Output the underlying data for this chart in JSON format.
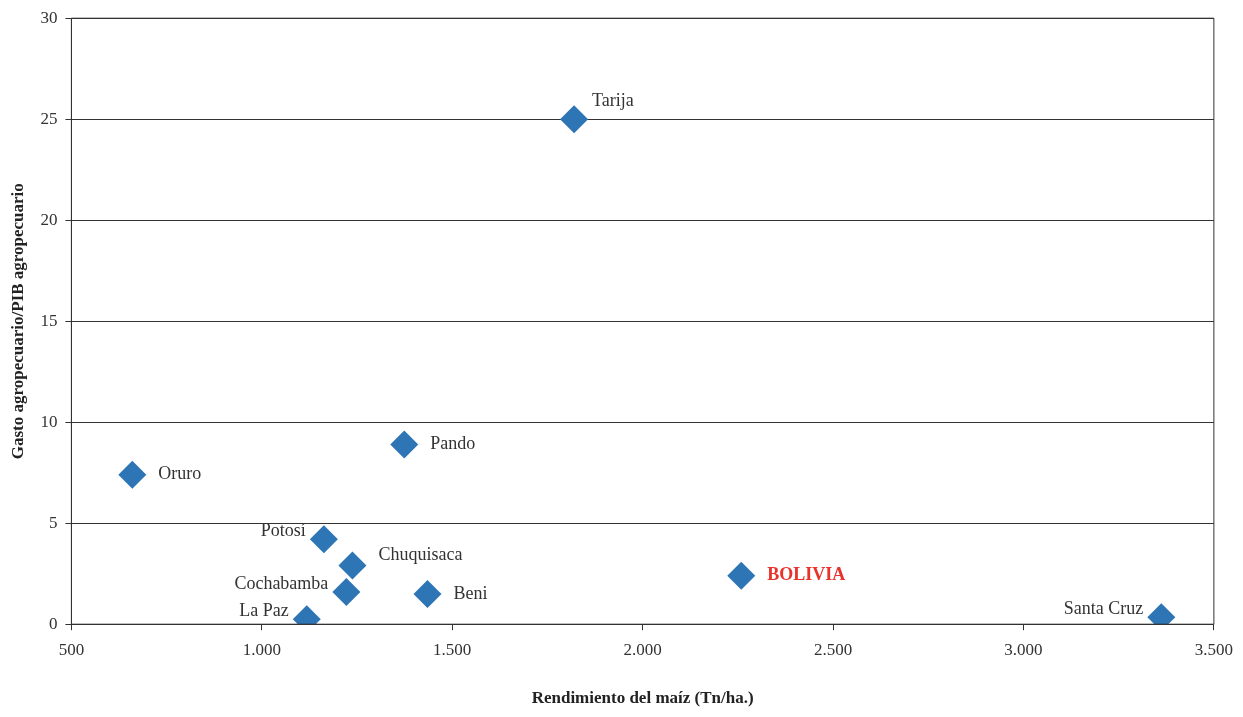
{
  "chart_data": {
    "type": "scatter",
    "xlabel": "Rendimiento del maíz (Tn/ha.)",
    "ylabel": "Gasto agropecuario/PIB agropecuario",
    "x": [
      1820,
      1374,
      660,
      1163,
      1238,
      1222,
      1435,
      1118,
      2259,
      3362
    ],
    "series": [
      {
        "color": "#2e75b6",
        "values": [
          25,
          8.9,
          7.4,
          4.2,
          2.9,
          1.6,
          1.5,
          0.25,
          2.4,
          0.35
        ]
      }
    ],
    "marker": "diamond",
    "grid": "y",
    "legend": false,
    "xlim": [
      500,
      3500
    ],
    "xticks": [
      500,
      {
        "value": 1000,
        "label": "1.000"
      },
      {
        "value": 1500,
        "label": "1.500"
      },
      {
        "value": 2000,
        "label": "2.000"
      },
      {
        "value": 2500,
        "label": "2.500"
      },
      {
        "value": 3000,
        "label": "3.000"
      },
      {
        "value": 3500,
        "label": "3.500"
      }
    ],
    "ylim": [
      0,
      30
    ],
    "yticks": [
      0,
      5,
      10,
      15,
      20,
      25,
      30
    ],
    "annotations": [
      {
        "text": "Tarija",
        "x": 1820,
        "y": 25
      },
      {
        "text": "Pando",
        "x": 1374,
        "y": 8.9
      },
      {
        "text": "Oruro",
        "x": 660,
        "y": 7.4
      },
      {
        "text": "Potosí",
        "x": 1163,
        "y": 4.2
      },
      {
        "text": "Chuquisaca",
        "x": 1238,
        "y": 2.9
      },
      {
        "text": "Cochabamba",
        "x": 1222,
        "y": 1.6
      },
      {
        "text": "Beni",
        "x": 1435,
        "y": 1.5
      },
      {
        "text": "La Paz",
        "x": 1118,
        "y": 0.25
      },
      {
        "text": "BOLIVIA",
        "x": 2259,
        "y": 2.4
      },
      {
        "text": "Santa Cruz",
        "x": 3362,
        "y": 0.35
      }
    ]
  }
}
